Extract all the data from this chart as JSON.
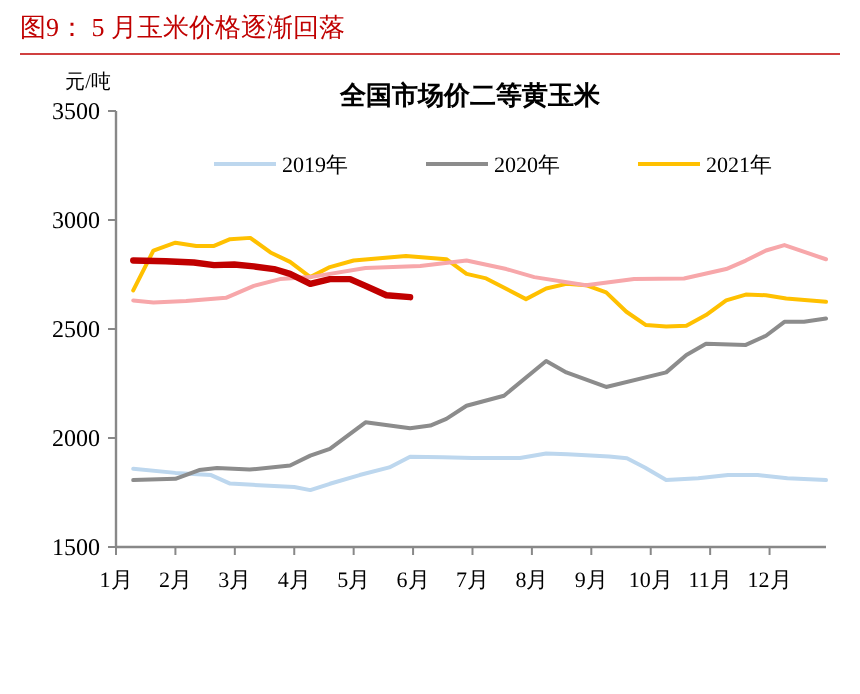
{
  "chart_data": {
    "type": "line",
    "title": "图9：  5 月玉米价格逐渐回落",
    "subtitle": "全国市场价二等黄玉米",
    "ylabel": "元/吨",
    "xlim": [
      1,
      12.95
    ],
    "xticks": [
      {
        "value": 1,
        "label": "1月"
      },
      {
        "value": 2,
        "label": "2月"
      },
      {
        "value": 3,
        "label": "3月"
      },
      {
        "value": 4,
        "label": "4月"
      },
      {
        "value": 5,
        "label": "5月"
      },
      {
        "value": 6,
        "label": "6月"
      },
      {
        "value": 7,
        "label": "7月"
      },
      {
        "value": 8,
        "label": "8月"
      },
      {
        "value": 9,
        "label": "9月"
      },
      {
        "value": 10,
        "label": "10月"
      },
      {
        "value": 11,
        "label": "11月"
      },
      {
        "value": 12,
        "label": "12月"
      }
    ],
    "ylim": [
      1500,
      3500
    ],
    "yticks": [
      1500,
      2000,
      2500,
      3000,
      3500
    ],
    "grid": false,
    "legend": "top",
    "line_style": "solid",
    "series": [
      {
        "name": "2019年",
        "color": "#bdd7ee",
        "x": [
          1.29,
          2.0,
          2.6,
          2.92,
          3.3,
          4.0,
          4.27,
          4.6,
          5.1,
          5.6,
          5.95,
          6.5,
          7.0,
          7.8,
          8.24,
          8.6,
          9.3,
          9.6,
          9.9,
          10.26,
          10.8,
          11.3,
          11.8,
          12.3,
          12.95
        ],
        "values": [
          1859,
          1840,
          1830,
          1791,
          1785,
          1775,
          1761,
          1790,
          1830,
          1865,
          1914,
          1912,
          1908,
          1908,
          1929,
          1925,
          1915,
          1907,
          1865,
          1807,
          1815,
          1830,
          1830,
          1815,
          1807
        ]
      },
      {
        "name": "2020年",
        "color": "#8c8c8c",
        "x": [
          1.29,
          2.0,
          2.4,
          2.7,
          3.25,
          3.93,
          4.27,
          4.6,
          5.2,
          5.95,
          6.29,
          6.56,
          6.9,
          7.53,
          8.24,
          8.58,
          9.25,
          10.26,
          10.6,
          10.93,
          11.6,
          11.94,
          12.25,
          12.58,
          12.95
        ],
        "values": [
          1807,
          1813,
          1853,
          1862,
          1855,
          1874,
          1919,
          1950,
          2072,
          2045,
          2057,
          2088,
          2148,
          2194,
          2353,
          2301,
          2234,
          2301,
          2381,
          2432,
          2427,
          2469,
          2533,
          2533,
          2548
        ]
      },
      {
        "name": "2021年",
        "color": "#ffc000",
        "x": [
          1.29,
          1.63,
          2.0,
          2.35,
          2.65,
          2.92,
          3.26,
          3.6,
          3.93,
          4.27,
          4.6,
          5.0,
          5.88,
          6.56,
          6.9,
          7.23,
          7.9,
          8.24,
          8.58,
          8.91,
          9.25,
          9.59,
          9.92,
          10.26,
          10.6,
          10.93,
          11.27,
          11.6,
          11.94,
          12.28,
          12.95
        ],
        "values": [
          2677,
          2860,
          2896,
          2881,
          2881,
          2912,
          2918,
          2851,
          2808,
          2738,
          2784,
          2814,
          2835,
          2820,
          2753,
          2732,
          2637,
          2686,
          2707,
          2701,
          2668,
          2579,
          2518,
          2512,
          2515,
          2564,
          2631,
          2658,
          2655,
          2640,
          2625
        ]
      },
      {
        "color": "#f7a7aa",
        "x": [
          1.29,
          1.63,
          2.18,
          2.85,
          3.32,
          3.76,
          4.27,
          5.2,
          6.12,
          6.9,
          7.57,
          8.04,
          8.91,
          9.72,
          10.56,
          11.27,
          11.6,
          11.94,
          12.25,
          12.95
        ],
        "values": [
          2631,
          2622,
          2628,
          2643,
          2698,
          2729,
          2738,
          2780,
          2789,
          2814,
          2775,
          2738,
          2701,
          2729,
          2732,
          2775,
          2814,
          2860,
          2885,
          2820
        ]
      },
      {
        "color": "#c00000",
        "x": [
          1.29,
          1.84,
          2.31,
          2.65,
          2.99,
          3.32,
          3.66,
          3.93,
          4.27,
          4.6,
          4.94,
          5.2,
          5.55,
          5.95
        ],
        "values": [
          2814,
          2811,
          2805,
          2793,
          2796,
          2787,
          2775,
          2753,
          2707,
          2729,
          2729,
          2698,
          2655,
          2646
        ]
      }
    ]
  }
}
